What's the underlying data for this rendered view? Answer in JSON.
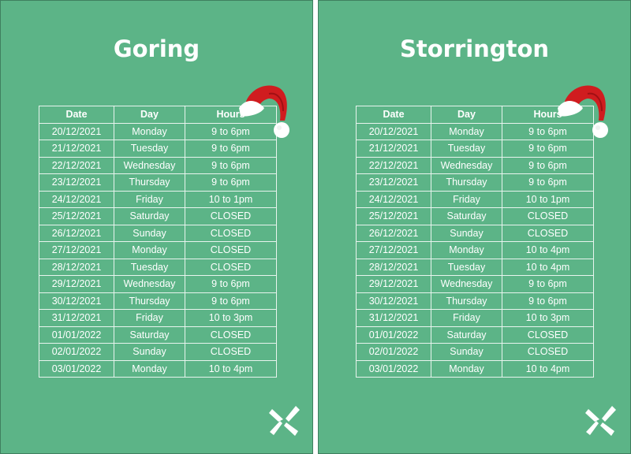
{
  "colors": {
    "background": "#5cb487",
    "text": "#ffffff",
    "gridline": "#e8f4ee",
    "hat_red": "#d01c1f",
    "hat_white": "#ffffff"
  },
  "icons": {
    "decoration": "santa-hat",
    "logo": "pinwheel-logo"
  },
  "headers": [
    "Date",
    "Day",
    "Hours"
  ],
  "pages": [
    {
      "title": "Goring",
      "rows": [
        [
          "20/12/2021",
          "Monday",
          "9 to 6pm"
        ],
        [
          "21/12/2021",
          "Tuesday",
          "9 to 6pm"
        ],
        [
          "22/12/2021",
          "Wednesday",
          "9 to 6pm"
        ],
        [
          "23/12/2021",
          "Thursday",
          "9 to 6pm"
        ],
        [
          "24/12/2021",
          "Friday",
          "10 to 1pm"
        ],
        [
          "25/12/2021",
          "Saturday",
          "CLOSED"
        ],
        [
          "26/12/2021",
          "Sunday",
          "CLOSED"
        ],
        [
          "27/12/2021",
          "Monday",
          "CLOSED"
        ],
        [
          "28/12/2021",
          "Tuesday",
          "CLOSED"
        ],
        [
          "29/12/2021",
          "Wednesday",
          "9 to 6pm"
        ],
        [
          "30/12/2021",
          "Thursday",
          "9 to 6pm"
        ],
        [
          "31/12/2021",
          "Friday",
          "10 to 3pm"
        ],
        [
          "01/01/2022",
          "Saturday",
          "CLOSED"
        ],
        [
          "02/01/2022",
          "Sunday",
          "CLOSED"
        ],
        [
          "03/01/2022",
          "Monday",
          "10 to 4pm"
        ]
      ]
    },
    {
      "title": "Storrington",
      "rows": [
        [
          "20/12/2021",
          "Monday",
          "9 to 6pm"
        ],
        [
          "21/12/2021",
          "Tuesday",
          "9 to 6pm"
        ],
        [
          "22/12/2021",
          "Wednesday",
          "9 to 6pm"
        ],
        [
          "23/12/2021",
          "Thursday",
          "9 to 6pm"
        ],
        [
          "24/12/2021",
          "Friday",
          "10 to 1pm"
        ],
        [
          "25/12/2021",
          "Saturday",
          "CLOSED"
        ],
        [
          "26/12/2021",
          "Sunday",
          "CLOSED"
        ],
        [
          "27/12/2021",
          "Monday",
          "10 to 4pm"
        ],
        [
          "28/12/2021",
          "Tuesday",
          "10 to 4pm"
        ],
        [
          "29/12/2021",
          "Wednesday",
          "9 to 6pm"
        ],
        [
          "30/12/2021",
          "Thursday",
          "9 to 6pm"
        ],
        [
          "31/12/2021",
          "Friday",
          "10 to 3pm"
        ],
        [
          "01/01/2022",
          "Saturday",
          "CLOSED"
        ],
        [
          "02/01/2022",
          "Sunday",
          "CLOSED"
        ],
        [
          "03/01/2022",
          "Monday",
          "10 to 4pm"
        ]
      ]
    }
  ]
}
